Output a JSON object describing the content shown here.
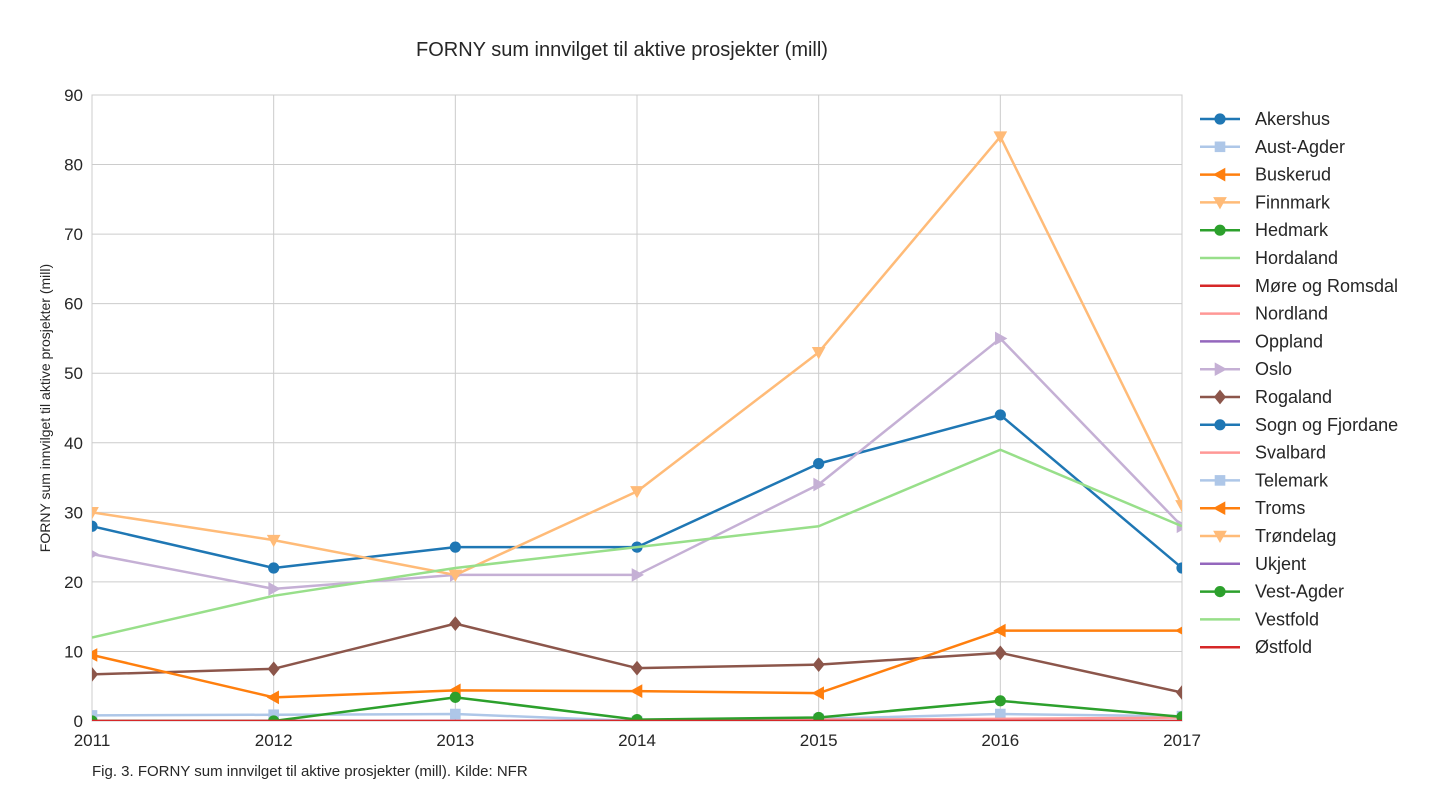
{
  "chart_data": {
    "type": "line",
    "title": "FORNY sum innvilget til aktive prosjekter (mill)",
    "ylabel": "FORNY sum innvilget til aktive prosjekter (mill)",
    "xlabel": "",
    "caption": "Fig. 3. FORNY sum innvilget til aktive prosjekter (mill). Kilde: NFR",
    "x": [
      2011,
      2012,
      2013,
      2014,
      2015,
      2016,
      2017
    ],
    "x_tick_labels": [
      "2011",
      "2012",
      "2013",
      "2014",
      "2015",
      "2016",
      "2017"
    ],
    "ylim": [
      0,
      90
    ],
    "y_ticks": [
      0,
      10,
      20,
      30,
      40,
      50,
      60,
      70,
      80,
      90
    ],
    "y_tick_labels": [
      "0",
      "10",
      "20",
      "30",
      "40",
      "50",
      "60",
      "70",
      "80",
      "90"
    ],
    "grid": true,
    "legend_position": "right",
    "series": [
      {
        "name": "Akershus",
        "color": "#1f77b4",
        "marker": "circle",
        "values": [
          28,
          22,
          25,
          25,
          37,
          44,
          22
        ]
      },
      {
        "name": "Aust-Agder",
        "color": "#aec7e8",
        "marker": "square",
        "values": [
          0.8,
          0.9,
          1.0,
          0,
          0.3,
          1.0,
          0.7
        ]
      },
      {
        "name": "Buskerud",
        "color": "#ff7f0e",
        "marker": "triangle-left",
        "values": [
          null,
          null,
          null,
          null,
          null,
          null,
          null
        ]
      },
      {
        "name": "Finnmark",
        "color": "#ffbb78",
        "marker": "triangle-down",
        "values": [
          null,
          null,
          null,
          null,
          null,
          null,
          null
        ]
      },
      {
        "name": "Hedmark",
        "color": "#2ca02c",
        "marker": "circle",
        "values": [
          null,
          null,
          null,
          null,
          null,
          null,
          null
        ]
      },
      {
        "name": "Hordaland",
        "color": "#98df8a",
        "marker": "none",
        "values": [
          null,
          null,
          null,
          null,
          null,
          null,
          null
        ]
      },
      {
        "name": "Møre og Romsdal",
        "color": "#d62728",
        "marker": "none",
        "values": [
          null,
          null,
          null,
          null,
          null,
          null,
          null
        ]
      },
      {
        "name": "Nordland",
        "color": "#ff9896",
        "marker": "none",
        "values": [
          0,
          0,
          0,
          0,
          0.2,
          0.3,
          0.5
        ]
      },
      {
        "name": "Oppland",
        "color": "#9467bd",
        "marker": "none",
        "values": [
          0,
          0,
          0,
          0,
          0,
          0,
          0
        ]
      },
      {
        "name": "Oslo",
        "color": "#c5b0d5",
        "marker": "triangle-right",
        "values": [
          24,
          19,
          21,
          21,
          34,
          55,
          28
        ]
      },
      {
        "name": "Rogaland",
        "color": "#8c564b",
        "marker": "diamond",
        "values": [
          6.7,
          7.5,
          14,
          7.6,
          8.1,
          9.8,
          4.1
        ]
      },
      {
        "name": "Sogn og Fjordane",
        "color": "#1f77b4",
        "marker": "circle",
        "values": [
          null,
          null,
          null,
          null,
          null,
          null,
          null
        ]
      },
      {
        "name": "Svalbard",
        "color": "#ff9896",
        "marker": "none",
        "values": [
          null,
          null,
          null,
          null,
          null,
          null,
          null
        ]
      },
      {
        "name": "Telemark",
        "color": "#aec7e8",
        "marker": "square",
        "values": [
          null,
          null,
          null,
          null,
          null,
          null,
          null
        ]
      },
      {
        "name": "Troms",
        "color": "#ff7f0e",
        "marker": "triangle-left",
        "values": [
          9.5,
          3.4,
          4.4,
          4.3,
          4.0,
          13,
          13
        ]
      },
      {
        "name": "Trøndelag",
        "color": "#ffbb78",
        "marker": "triangle-down",
        "values": [
          30,
          26,
          21,
          33,
          53,
          84,
          31
        ]
      },
      {
        "name": "Ukjent",
        "color": "#9467bd",
        "marker": "none",
        "values": [
          null,
          null,
          null,
          null,
          null,
          null,
          null
        ]
      },
      {
        "name": "Vest-Agder",
        "color": "#2ca02c",
        "marker": "circle",
        "values": [
          0,
          0,
          3.4,
          0.2,
          0.5,
          2.9,
          0.6
        ]
      },
      {
        "name": "Vestfold",
        "color": "#98df8a",
        "marker": "none",
        "values": [
          12,
          18,
          22,
          25,
          28,
          39,
          28
        ]
      },
      {
        "name": "Østfold",
        "color": "#d62728",
        "marker": "none",
        "values": [
          0,
          0,
          0,
          0,
          0,
          0,
          0
        ]
      }
    ]
  }
}
